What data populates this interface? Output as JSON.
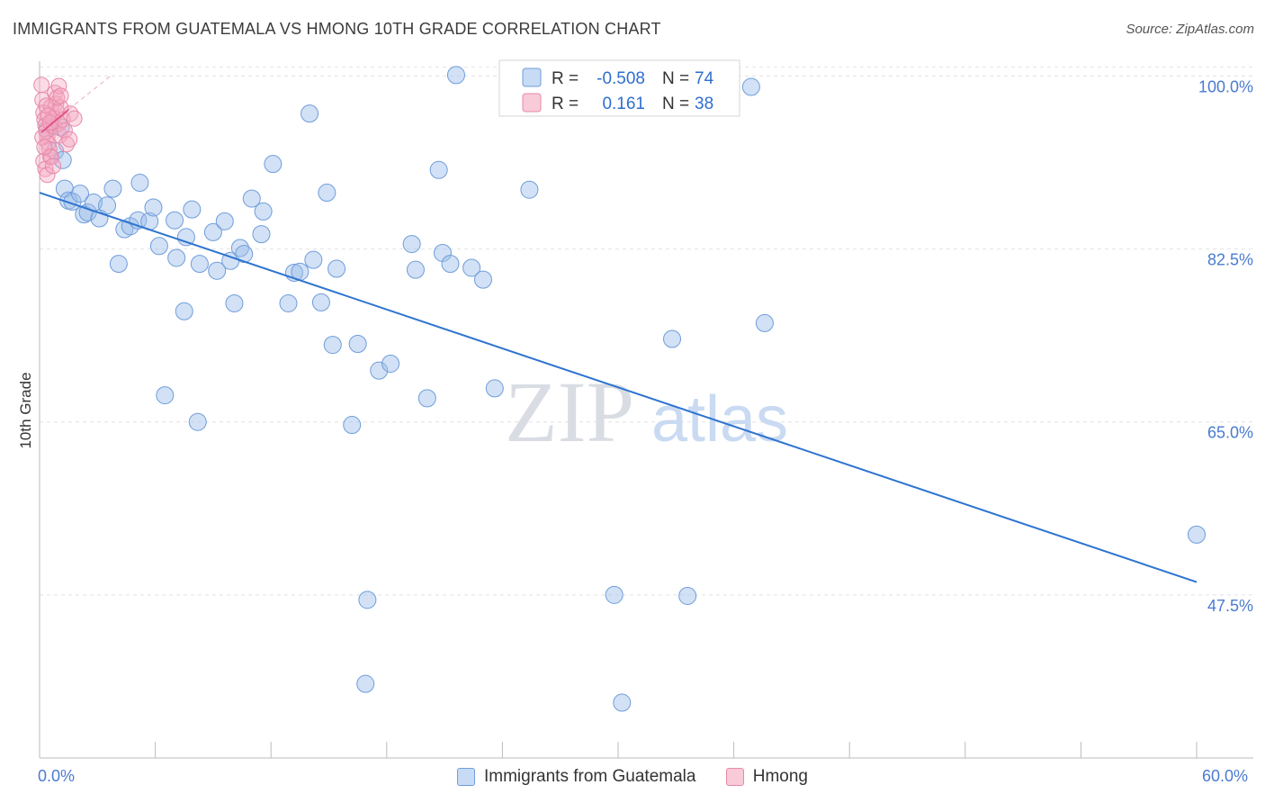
{
  "chart_data": {
    "type": "scatter",
    "title": "IMMIGRANTS FROM GUATEMALA VS HMONG 10TH GRADE CORRELATION CHART",
    "source": "Source: ZipAtlas.com",
    "xlabel": "",
    "ylabel": "10th Grade",
    "xlim": [
      0,
      60
    ],
    "ylim": [
      31,
      101.5
    ],
    "x_tick_labels": [
      "0.0%",
      "60.0%"
    ],
    "y_ticks": [
      {
        "value": 100.0,
        "label": "100.0%"
      },
      {
        "value": 82.5,
        "label": "82.5%"
      },
      {
        "value": 65.0,
        "label": "65.0%"
      },
      {
        "value": 47.5,
        "label": "47.5%"
      }
    ],
    "watermark": {
      "zip": "ZIP",
      "atlas": "atlas"
    },
    "legend_box": {
      "rows": [
        {
          "r_label": "R =",
          "r_value": "-0.508",
          "n_label": "N =",
          "n_value": "74"
        },
        {
          "r_label": "R =",
          "r_value": "0.161",
          "n_label": "N =",
          "n_value": "38"
        }
      ]
    },
    "series": [
      {
        "name": "Immigrants from Guatemala",
        "color": "#9bbde8",
        "edge": "#6f9ddb",
        "trend": {
          "x": [
            0,
            60
          ],
          "y": [
            88.2,
            48.8
          ],
          "color": "#2e74d0"
        },
        "points": [
          [
            0.4,
            94.6
          ],
          [
            0.8,
            92.4
          ],
          [
            1.1,
            94.8
          ],
          [
            1.2,
            91.5
          ],
          [
            1.3,
            88.6
          ],
          [
            1.5,
            87.4
          ],
          [
            1.7,
            87.3
          ],
          [
            2.1,
            88.1
          ],
          [
            2.3,
            86.0
          ],
          [
            2.5,
            86.2
          ],
          [
            2.8,
            87.2
          ],
          [
            3.1,
            85.6
          ],
          [
            3.5,
            86.9
          ],
          [
            3.8,
            88.6
          ],
          [
            4.1,
            81.0
          ],
          [
            4.4,
            84.5
          ],
          [
            4.7,
            84.8
          ],
          [
            5.1,
            85.4
          ],
          [
            5.2,
            89.2
          ],
          [
            5.7,
            85.3
          ],
          [
            5.9,
            86.7
          ],
          [
            6.2,
            82.8
          ],
          [
            6.5,
            67.7
          ],
          [
            7.0,
            85.4
          ],
          [
            7.1,
            81.6
          ],
          [
            7.6,
            83.7
          ],
          [
            7.5,
            76.2
          ],
          [
            7.9,
            86.5
          ],
          [
            8.3,
            81.0
          ],
          [
            8.2,
            65.0
          ],
          [
            9.0,
            84.2
          ],
          [
            9.2,
            80.3
          ],
          [
            9.6,
            85.3
          ],
          [
            9.9,
            81.3
          ],
          [
            10.1,
            77.0
          ],
          [
            10.4,
            82.6
          ],
          [
            10.6,
            82.0
          ],
          [
            11.0,
            87.6
          ],
          [
            11.5,
            84.0
          ],
          [
            11.6,
            86.3
          ],
          [
            12.1,
            91.1
          ],
          [
            12.9,
            77.0
          ],
          [
            13.2,
            80.1
          ],
          [
            13.5,
            80.2
          ],
          [
            14.0,
            96.2
          ],
          [
            14.2,
            81.4
          ],
          [
            14.6,
            77.1
          ],
          [
            14.9,
            88.2
          ],
          [
            15.2,
            72.8
          ],
          [
            15.4,
            80.5
          ],
          [
            16.2,
            64.7
          ],
          [
            16.5,
            72.9
          ],
          [
            17.0,
            47.0
          ],
          [
            16.9,
            38.5
          ],
          [
            17.6,
            70.2
          ],
          [
            18.2,
            70.9
          ],
          [
            19.3,
            83.0
          ],
          [
            19.5,
            80.4
          ],
          [
            20.1,
            67.4
          ],
          [
            20.7,
            90.5
          ],
          [
            20.9,
            82.1
          ],
          [
            21.3,
            81.0
          ],
          [
            21.6,
            100.1
          ],
          [
            22.4,
            80.6
          ],
          [
            23.0,
            79.4
          ],
          [
            23.6,
            68.4
          ],
          [
            25.4,
            88.5
          ],
          [
            29.8,
            47.5
          ],
          [
            30.2,
            36.6
          ],
          [
            32.8,
            73.4
          ],
          [
            33.6,
            47.4
          ],
          [
            37.6,
            75.0
          ],
          [
            36.9,
            98.9
          ],
          [
            60.0,
            53.6
          ]
        ]
      },
      {
        "name": "Hmong",
        "color": "#f4a8c0",
        "edge": "#e889a8",
        "trend": {
          "x": [
            0.1,
            1.5
          ],
          "y": [
            94.3,
            96.6
          ],
          "color": "#e05585",
          "dash_x": [
            1.5,
            3.8
          ],
          "dash_y": [
            96.6,
            100.2
          ]
        },
        "points": [
          [
            0.1,
            99.1
          ],
          [
            0.15,
            97.6
          ],
          [
            0.2,
            96.3
          ],
          [
            0.25,
            95.6
          ],
          [
            0.3,
            95.0
          ],
          [
            0.35,
            94.4
          ],
          [
            0.4,
            93.9
          ],
          [
            0.45,
            93.2
          ],
          [
            0.5,
            92.6
          ],
          [
            0.55,
            91.9
          ],
          [
            0.6,
            96.9
          ],
          [
            0.7,
            95.8
          ],
          [
            0.75,
            94.9
          ],
          [
            0.8,
            98.3
          ],
          [
            0.85,
            97.2
          ],
          [
            0.9,
            96.4
          ],
          [
            1.0,
            95.2
          ],
          [
            1.05,
            94.0
          ],
          [
            1.1,
            96.8
          ],
          [
            1.2,
            95.6
          ],
          [
            1.3,
            94.5
          ],
          [
            1.4,
            93.1
          ],
          [
            0.2,
            91.4
          ],
          [
            0.3,
            90.6
          ],
          [
            0.4,
            90.0
          ],
          [
            0.6,
            91.8
          ],
          [
            0.7,
            90.9
          ],
          [
            0.9,
            97.8
          ],
          [
            1.0,
            99.0
          ],
          [
            1.1,
            98.0
          ],
          [
            0.15,
            93.8
          ],
          [
            0.25,
            92.8
          ],
          [
            0.35,
            97.0
          ],
          [
            0.45,
            96.0
          ],
          [
            0.55,
            95.3
          ],
          [
            1.6,
            96.2
          ],
          [
            1.8,
            95.7
          ],
          [
            1.55,
            93.6
          ]
        ]
      }
    ]
  }
}
